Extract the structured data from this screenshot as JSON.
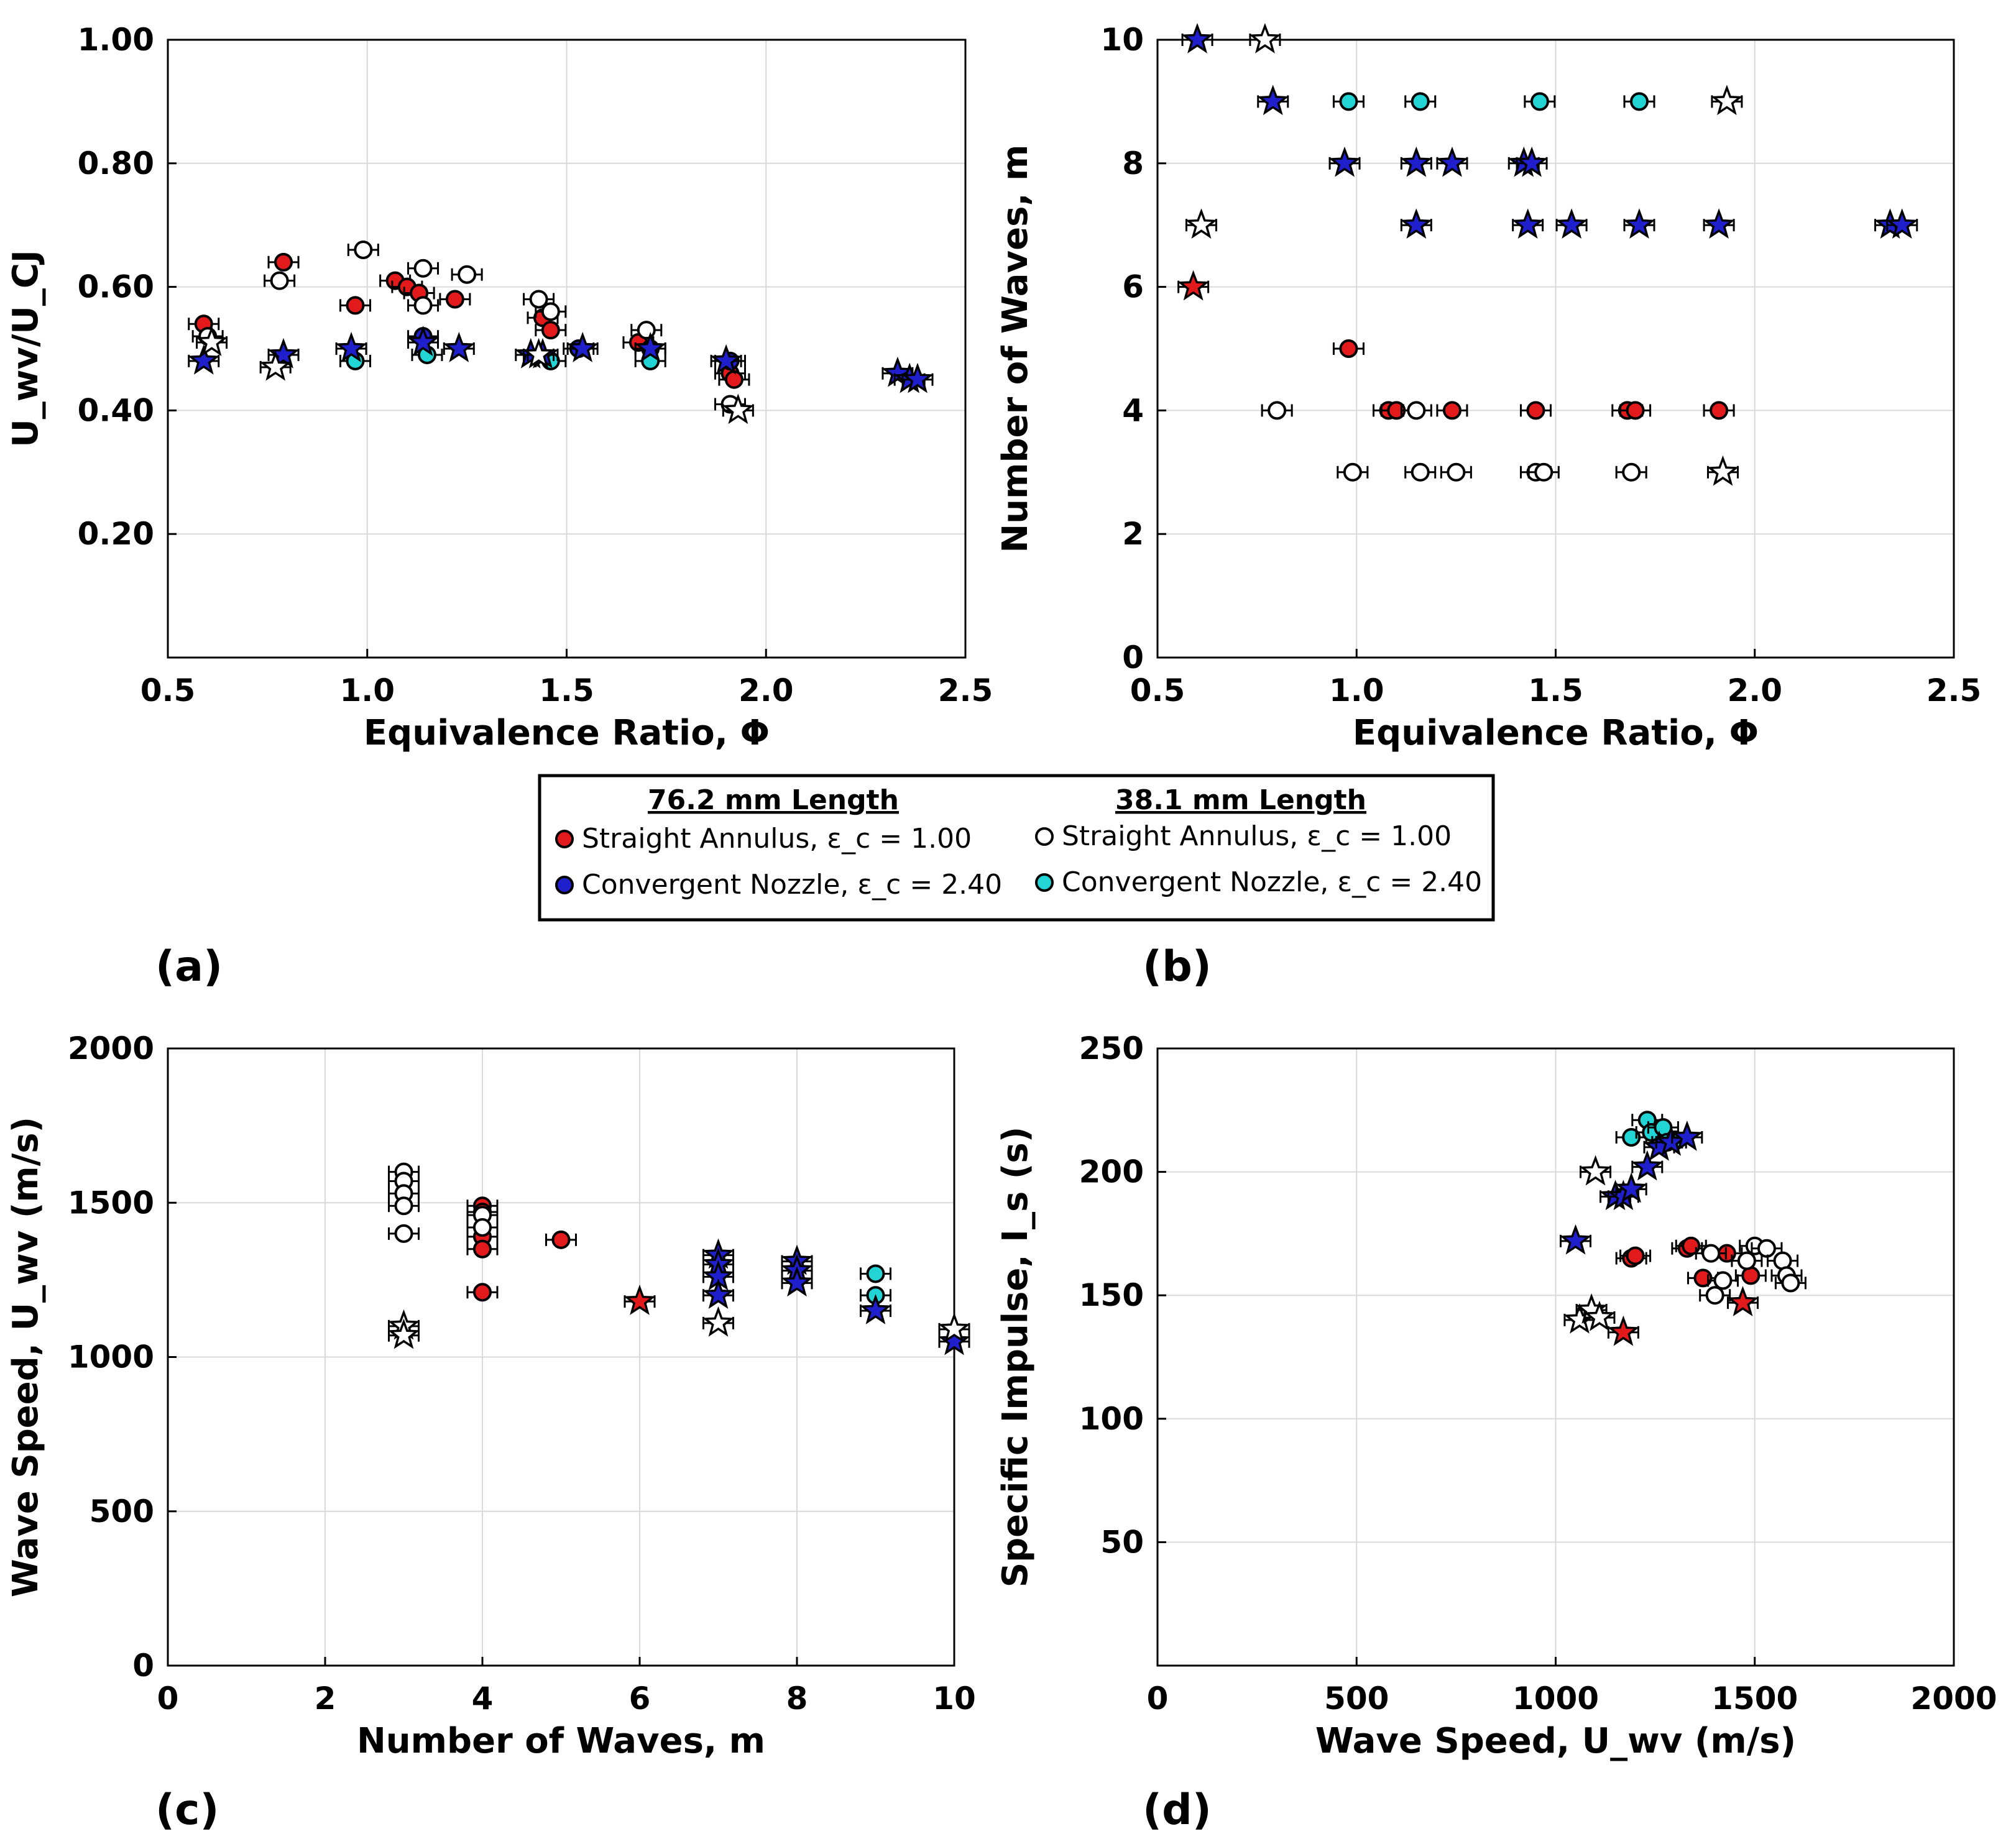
{
  "legend": {
    "group1_title": "76.2 mm Length",
    "group2_title": "38.1 mm Length",
    "entries": [
      {
        "id": "sa76",
        "label": "Straight Annulus, ε_c = 1.00",
        "color": "#e31a1c"
      },
      {
        "id": "cn76",
        "label": "Convergent Nozzle, ε_c = 2.40",
        "color": "#1f1fcc"
      },
      {
        "id": "sa38",
        "label": "Straight Annulus, ε_c = 1.00",
        "color": "#ffffff"
      },
      {
        "id": "cn38",
        "label": "Convergent Nozzle, ε_c = 2.40",
        "color": "#22d4d4"
      }
    ]
  },
  "chart_data": [
    {
      "panel": "(a)",
      "type": "scatter",
      "xlabel": "Equivalence Ratio, Φ",
      "ylabel": "U_wv/U_CJ",
      "xlim": [
        0.5,
        2.5
      ],
      "ylim": [
        0,
        1.0
      ],
      "xticks": [
        0.5,
        1.0,
        1.5,
        2.0,
        2.5
      ],
      "xtick_labels": [
        "0.5",
        "1.0",
        "1.5",
        "2.0",
        "2.5"
      ],
      "yticks": [
        0.2,
        0.4,
        0.6,
        0.8,
        1.0
      ],
      "ytick_labels": [
        "0.20",
        "0.40",
        "0.60",
        "0.80",
        "1.00"
      ],
      "series": [
        {
          "name": "sa76",
          "shape": "circle",
          "points": [
            [
              0.59,
              0.54
            ],
            [
              0.79,
              0.64
            ],
            [
              0.97,
              0.57
            ],
            [
              1.07,
              0.61
            ],
            [
              1.1,
              0.6
            ],
            [
              1.13,
              0.59
            ],
            [
              1.22,
              0.58
            ],
            [
              1.44,
              0.55
            ],
            [
              1.46,
              0.53
            ],
            [
              1.68,
              0.51
            ],
            [
              1.71,
              0.5
            ],
            [
              1.91,
              0.46
            ],
            [
              1.92,
              0.45
            ]
          ]
        },
        {
          "name": "sa38",
          "shape": "circle",
          "points": [
            [
              0.6,
              0.52
            ],
            [
              0.78,
              0.61
            ],
            [
              0.99,
              0.66
            ],
            [
              1.14,
              0.63
            ],
            [
              1.14,
              0.57
            ],
            [
              1.25,
              0.62
            ],
            [
              1.43,
              0.58
            ],
            [
              1.46,
              0.56
            ],
            [
              1.7,
              0.53
            ],
            [
              1.91,
              0.41
            ]
          ]
        },
        {
          "name": "cn76",
          "shape": "circle",
          "points": [
            [
              1.14,
              0.52
            ],
            [
              1.53,
              0.5
            ],
            [
              1.91,
              0.48
            ]
          ]
        },
        {
          "name": "cn38",
          "shape": "circle",
          "points": [
            [
              0.97,
              0.48
            ],
            [
              1.15,
              0.49
            ],
            [
              1.46,
              0.48
            ],
            [
              1.71,
              0.48
            ]
          ]
        },
        {
          "name": "star76",
          "shape": "star",
          "fill": "#1f1fcc",
          "points": [
            [
              0.59,
              0.48
            ],
            [
              0.79,
              0.49
            ],
            [
              0.96,
              0.5
            ],
            [
              1.14,
              0.51
            ],
            [
              1.23,
              0.5
            ],
            [
              1.41,
              0.49
            ],
            [
              1.44,
              0.49
            ],
            [
              1.54,
              0.5
            ],
            [
              1.71,
              0.5
            ],
            [
              1.9,
              0.48
            ],
            [
              2.33,
              0.46
            ],
            [
              2.36,
              0.45
            ],
            [
              2.38,
              0.45
            ]
          ]
        },
        {
          "name": "star38",
          "shape": "star",
          "fill": "#ffffff",
          "points": [
            [
              0.61,
              0.51
            ],
            [
              0.77,
              0.47
            ],
            [
              1.43,
              0.49
            ],
            [
              1.93,
              0.4
            ]
          ]
        }
      ]
    },
    {
      "panel": "(b)",
      "type": "scatter",
      "xlabel": "Equivalence Ratio, Φ",
      "ylabel": "Number of Waves, m",
      "xlim": [
        0.5,
        2.5
      ],
      "ylim": [
        0,
        10
      ],
      "xticks": [
        0.5,
        1.0,
        1.5,
        2.0,
        2.5
      ],
      "xtick_labels": [
        "0.5",
        "1.0",
        "1.5",
        "2.0",
        "2.5"
      ],
      "yticks": [
        0,
        2,
        4,
        6,
        8,
        10
      ],
      "ytick_labels": [
        "0",
        "2",
        "4",
        "6",
        "8",
        "10"
      ],
      "series": [
        {
          "name": "sa76",
          "shape": "circle",
          "points": [
            [
              0.98,
              5
            ],
            [
              1.08,
              4
            ],
            [
              1.1,
              4
            ],
            [
              1.24,
              4
            ],
            [
              1.45,
              4
            ],
            [
              1.68,
              4
            ],
            [
              1.7,
              4
            ],
            [
              1.91,
              4
            ]
          ]
        },
        {
          "name": "sa38",
          "shape": "circle",
          "points": [
            [
              0.8,
              4
            ],
            [
              0.99,
              3
            ],
            [
              1.15,
              4
            ],
            [
              1.16,
              3
            ],
            [
              1.25,
              3
            ],
            [
              1.45,
              3
            ],
            [
              1.47,
              3
            ],
            [
              1.69,
              3
            ]
          ]
        },
        {
          "name": "cn38",
          "shape": "circle",
          "points": [
            [
              0.98,
              9
            ],
            [
              1.16,
              9
            ],
            [
              1.46,
              9
            ],
            [
              1.71,
              9
            ]
          ]
        },
        {
          "name": "star76",
          "shape": "star",
          "fill": "#1f1fcc",
          "points": [
            [
              0.6,
              10
            ],
            [
              0.79,
              9
            ],
            [
              0.97,
              8
            ],
            [
              1.15,
              8
            ],
            [
              1.24,
              8
            ],
            [
              1.42,
              8
            ],
            [
              1.44,
              8
            ],
            [
              1.15,
              7
            ],
            [
              1.43,
              7
            ],
            [
              1.54,
              7
            ],
            [
              1.71,
              7
            ],
            [
              1.91,
              7
            ],
            [
              2.34,
              7
            ],
            [
              2.37,
              7
            ]
          ]
        },
        {
          "name": "star76r",
          "shape": "star",
          "fill": "#e31a1c",
          "points": [
            [
              0.59,
              6
            ]
          ]
        },
        {
          "name": "star38",
          "shape": "star",
          "fill": "#ffffff",
          "points": [
            [
              0.61,
              7
            ],
            [
              0.77,
              10
            ],
            [
              1.93,
              9
            ],
            [
              1.92,
              3
            ]
          ]
        }
      ]
    },
    {
      "panel": "(c)",
      "type": "scatter",
      "xlabel": "Number of Waves, m",
      "ylabel": "Wave Speed, U_wv (m/s)",
      "xlim": [
        0,
        10
      ],
      "ylim": [
        0,
        2000
      ],
      "xticks": [
        0,
        2,
        4,
        6,
        8,
        10
      ],
      "xtick_labels": [
        "0",
        "2",
        "4",
        "6",
        "8",
        "10"
      ],
      "yticks": [
        0,
        500,
        1000,
        1500,
        2000
      ],
      "ytick_labels": [
        "0",
        "500",
        "1000",
        "1500",
        "2000"
      ],
      "series": [
        {
          "name": "sa76",
          "shape": "circle",
          "points": [
            [
              4,
              1490
            ],
            [
              4,
              1470
            ],
            [
              4,
              1390
            ],
            [
              4,
              1350
            ],
            [
              4,
              1210
            ],
            [
              5,
              1380
            ]
          ]
        },
        {
          "name": "sa38",
          "shape": "circle",
          "points": [
            [
              3,
              1600
            ],
            [
              3,
              1570
            ],
            [
              3,
              1530
            ],
            [
              3,
              1490
            ],
            [
              3,
              1400
            ],
            [
              4,
              1460
            ],
            [
              4,
              1420
            ]
          ]
        },
        {
          "name": "cn38",
          "shape": "circle",
          "points": [
            [
              9,
              1270
            ],
            [
              9,
              1200
            ]
          ]
        },
        {
          "name": "star76",
          "shape": "star",
          "fill": "#1f1fcc",
          "points": [
            [
              7,
              1330
            ],
            [
              7,
              1300
            ],
            [
              7,
              1260
            ],
            [
              7,
              1200
            ],
            [
              8,
              1310
            ],
            [
              8,
              1280
            ],
            [
              8,
              1240
            ],
            [
              9,
              1150
            ],
            [
              10,
              1050
            ]
          ]
        },
        {
          "name": "star76r",
          "shape": "star",
          "fill": "#e31a1c",
          "points": [
            [
              6,
              1180
            ]
          ]
        },
        {
          "name": "star38",
          "shape": "star",
          "fill": "#ffffff",
          "points": [
            [
              3,
              1100
            ],
            [
              3,
              1070
            ],
            [
              7,
              1110
            ],
            [
              10,
              1090
            ]
          ]
        }
      ]
    },
    {
      "panel": "(d)",
      "type": "scatter",
      "xlabel": "Wave Speed, U_wv (m/s)",
      "ylabel": "Specific Impulse, I_s (s)",
      "xlim": [
        0,
        2000
      ],
      "ylim": [
        0,
        250
      ],
      "xticks": [
        0,
        500,
        1000,
        1500,
        2000
      ],
      "xtick_labels": [
        "0",
        "500",
        "1000",
        "1500",
        "2000"
      ],
      "yticks": [
        50,
        100,
        150,
        200,
        250
      ],
      "ytick_labels": [
        "50",
        "100",
        "150",
        "200",
        "250"
      ],
      "series": [
        {
          "name": "sa76",
          "shape": "circle",
          "points": [
            [
              1190,
              165
            ],
            [
              1200,
              166
            ],
            [
              1330,
              169
            ],
            [
              1340,
              170
            ],
            [
              1370,
              157
            ],
            [
              1430,
              167
            ],
            [
              1490,
              158
            ]
          ]
        },
        {
          "name": "sa38",
          "shape": "circle",
          "points": [
            [
              1390,
              167
            ],
            [
              1400,
              150
            ],
            [
              1420,
              156
            ],
            [
              1480,
              164
            ],
            [
              1500,
              170
            ],
            [
              1530,
              169
            ],
            [
              1570,
              164
            ],
            [
              1580,
              158
            ],
            [
              1590,
              155
            ]
          ]
        },
        {
          "name": "cn38",
          "shape": "circle",
          "points": [
            [
              1190,
              214
            ],
            [
              1230,
              221
            ],
            [
              1240,
              216
            ],
            [
              1270,
              218
            ],
            [
              1280,
              212
            ],
            [
              1300,
              213
            ]
          ]
        },
        {
          "name": "star76",
          "shape": "star",
          "fill": "#1f1fcc",
          "points": [
            [
              1050,
              172
            ],
            [
              1150,
              190
            ],
            [
              1170,
              190
            ],
            [
              1190,
              193
            ],
            [
              1230,
              202
            ],
            [
              1260,
              210
            ],
            [
              1290,
              212
            ],
            [
              1330,
              214
            ]
          ]
        },
        {
          "name": "star76r",
          "shape": "star",
          "fill": "#e31a1c",
          "points": [
            [
              1170,
              135
            ],
            [
              1470,
              147
            ]
          ]
        },
        {
          "name": "star38",
          "shape": "star",
          "fill": "#ffffff",
          "points": [
            [
              1060,
              140
            ],
            [
              1090,
              144
            ],
            [
              1110,
              141
            ],
            [
              1100,
              200
            ]
          ]
        }
      ]
    }
  ],
  "panel_labels": [
    "(a)",
    "(b)",
    "(c)",
    "(d)"
  ]
}
